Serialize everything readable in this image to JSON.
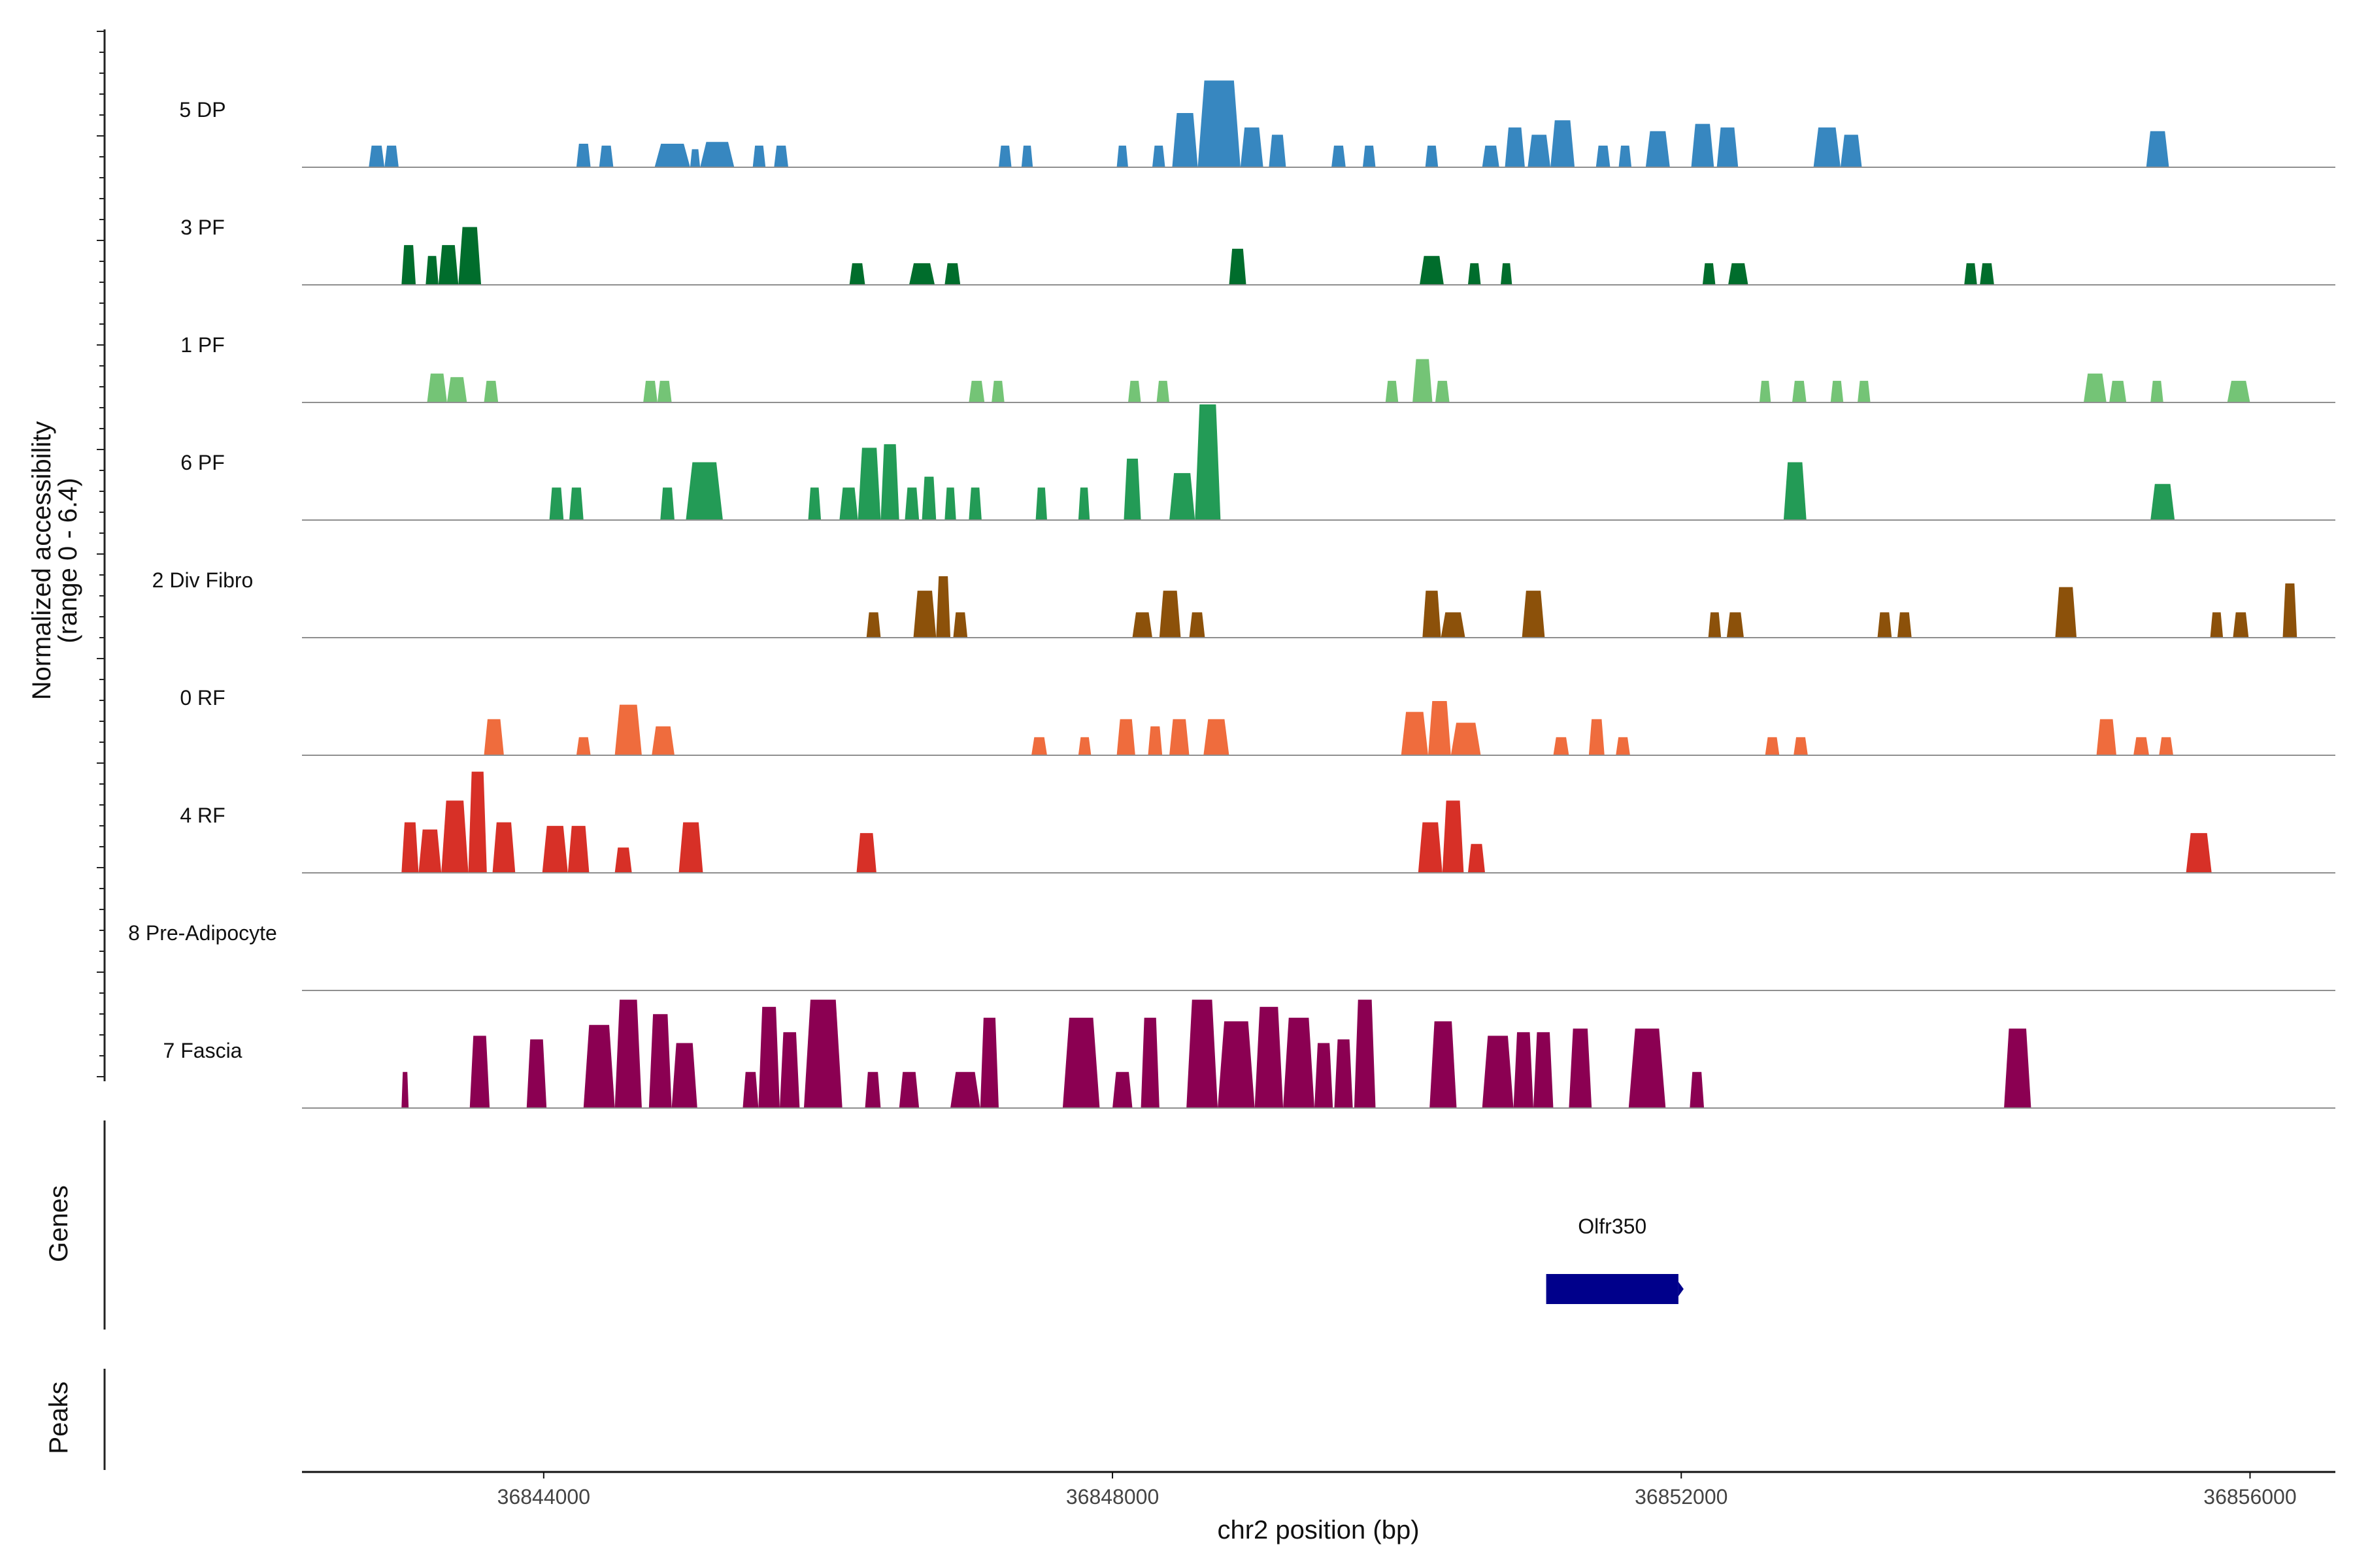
{
  "chart_data": {
    "type": "area",
    "title": "",
    "ylabel": "Normalized accessibility",
    "ylabel_range": "(range 0 - 6.4)",
    "ylim": [
      0,
      6.4
    ],
    "xlabel": "chr2 position (bp)",
    "xlim": [
      36842300,
      36856600
    ],
    "xticks": [
      36844000,
      36848000,
      36852000,
      36856000
    ],
    "xtick_labels": [
      "36844000",
      "36848000",
      "36852000",
      "36856000"
    ],
    "series": [
      {
        "name": "5 DP",
        "color": "#3787c0",
        "peaks": [
          [
            36842770,
            36842880,
            1.2
          ],
          [
            36842880,
            36842980,
            1.2
          ],
          [
            36844230,
            36844330,
            1.3
          ],
          [
            36844390,
            36844490,
            1.2
          ],
          [
            36844780,
            36845030,
            1.3
          ],
          [
            36845030,
            36845100,
            1.0
          ],
          [
            36845100,
            36845340,
            1.4
          ],
          [
            36845470,
            36845560,
            1.2
          ],
          [
            36845620,
            36845720,
            1.2
          ],
          [
            36847200,
            36847290,
            1.2
          ],
          [
            36847360,
            36847440,
            1.2
          ],
          [
            36848030,
            36848110,
            1.2
          ],
          [
            36848280,
            36848370,
            1.2
          ],
          [
            36848420,
            36848600,
            3.0
          ],
          [
            36848600,
            36848900,
            4.8
          ],
          [
            36848900,
            36849060,
            2.2
          ],
          [
            36849100,
            36849220,
            1.8
          ],
          [
            36849540,
            36849640,
            1.2
          ],
          [
            36849760,
            36849850,
            1.2
          ],
          [
            36850200,
            36850290,
            1.2
          ],
          [
            36850600,
            36850720,
            1.2
          ],
          [
            36850760,
            36850900,
            2.2
          ],
          [
            36850920,
            36851080,
            1.8
          ],
          [
            36851080,
            36851250,
            2.6
          ],
          [
            36851400,
            36851500,
            1.2
          ],
          [
            36851560,
            36851650,
            1.2
          ],
          [
            36851750,
            36851920,
            2.0
          ],
          [
            36852070,
            36852230,
            2.4
          ],
          [
            36852250,
            36852400,
            2.2
          ],
          [
            36852930,
            36853120,
            2.2
          ],
          [
            36853120,
            36853270,
            1.8
          ],
          [
            36855270,
            36855430,
            2.0
          ]
        ]
      },
      {
        "name": "3 PF",
        "color": "#006d2c",
        "peaks": [
          [
            36843000,
            36843100,
            2.2
          ],
          [
            36843170,
            36843260,
            1.6
          ],
          [
            36843260,
            36843400,
            2.2
          ],
          [
            36843400,
            36843560,
            3.2
          ],
          [
            36846150,
            36846260,
            1.2
          ],
          [
            36846570,
            36846750,
            1.2
          ],
          [
            36846820,
            36846930,
            1.2
          ],
          [
            36848820,
            36848940,
            2.0
          ],
          [
            36850160,
            36850330,
            1.6
          ],
          [
            36850500,
            36850590,
            1.2
          ],
          [
            36850730,
            36850810,
            1.2
          ],
          [
            36852150,
            36852240,
            1.2
          ],
          [
            36852330,
            36852470,
            1.2
          ],
          [
            36853990,
            36854080,
            1.2
          ],
          [
            36854100,
            36854200,
            1.2
          ]
        ]
      },
      {
        "name": "1 PF",
        "color": "#74c476",
        "peaks": [
          [
            36843180,
            36843320,
            1.6
          ],
          [
            36843320,
            36843460,
            1.4
          ],
          [
            36843580,
            36843680,
            1.2
          ],
          [
            36844700,
            36844800,
            1.2
          ],
          [
            36844800,
            36844900,
            1.2
          ],
          [
            36846990,
            36847100,
            1.2
          ],
          [
            36847150,
            36847240,
            1.2
          ],
          [
            36848110,
            36848200,
            1.2
          ],
          [
            36848310,
            36848400,
            1.2
          ],
          [
            36849920,
            36850010,
            1.2
          ],
          [
            36850110,
            36850250,
            2.4
          ],
          [
            36850270,
            36850370,
            1.2
          ],
          [
            36852550,
            36852630,
            1.2
          ],
          [
            36852780,
            36852880,
            1.2
          ],
          [
            36853050,
            36853140,
            1.2
          ],
          [
            36853240,
            36853330,
            1.2
          ],
          [
            36854830,
            36854990,
            1.6
          ],
          [
            36855010,
            36855130,
            1.2
          ],
          [
            36855300,
            36855390,
            1.2
          ],
          [
            36855840,
            36856000,
            1.2
          ]
        ]
      },
      {
        "name": "6 PF",
        "color": "#239b56",
        "peaks": [
          [
            36844040,
            36844140,
            1.8
          ],
          [
            36844180,
            36844280,
            1.8
          ],
          [
            36844820,
            36844920,
            1.8
          ],
          [
            36845000,
            36845260,
            3.2
          ],
          [
            36845860,
            36845950,
            1.8
          ],
          [
            36846080,
            36846210,
            1.8
          ],
          [
            36846210,
            36846370,
            4.0
          ],
          [
            36846370,
            36846500,
            4.2
          ],
          [
            36846540,
            36846640,
            1.8
          ],
          [
            36846660,
            36846760,
            2.4
          ],
          [
            36846820,
            36846900,
            1.8
          ],
          [
            36846990,
            36847080,
            1.8
          ],
          [
            36847460,
            36847540,
            1.8
          ],
          [
            36847760,
            36847840,
            1.8
          ],
          [
            36848080,
            36848200,
            3.4
          ],
          [
            36848400,
            36848580,
            2.6
          ],
          [
            36848580,
            36848760,
            6.4
          ],
          [
            36852720,
            36852880,
            3.2
          ],
          [
            36855300,
            36855470,
            2.0
          ]
        ]
      },
      {
        "name": "2 Div Fibro",
        "color": "#8c510a",
        "peaks": [
          [
            36846270,
            36846370,
            1.4
          ],
          [
            36846600,
            36846760,
            2.6
          ],
          [
            36846760,
            36846860,
            3.4
          ],
          [
            36846880,
            36846980,
            1.4
          ],
          [
            36848140,
            36848280,
            1.4
          ],
          [
            36848330,
            36848480,
            2.6
          ],
          [
            36848540,
            36848650,
            1.4
          ],
          [
            36850180,
            36850310,
            2.6
          ],
          [
            36850310,
            36850480,
            1.4
          ],
          [
            36850880,
            36851040,
            2.6
          ],
          [
            36852190,
            36852280,
            1.4
          ],
          [
            36852320,
            36852440,
            1.4
          ],
          [
            36853380,
            36853480,
            1.4
          ],
          [
            36853520,
            36853620,
            1.4
          ],
          [
            36854630,
            36854780,
            2.8
          ],
          [
            36855720,
            36855810,
            1.4
          ],
          [
            36855880,
            36855990,
            1.4
          ],
          [
            36856230,
            36856330,
            3.0
          ]
        ]
      },
      {
        "name": "0 RF",
        "color": "#ef6c3d",
        "peaks": [
          [
            36843580,
            36843720,
            2.0
          ],
          [
            36844230,
            36844330,
            1.0
          ],
          [
            36844500,
            36844690,
            2.8
          ],
          [
            36844760,
            36844920,
            1.6
          ],
          [
            36847430,
            36847540,
            1.0
          ],
          [
            36847760,
            36847850,
            1.0
          ],
          [
            36848030,
            36848160,
            2.0
          ],
          [
            36848250,
            36848350,
            1.6
          ],
          [
            36848400,
            36848540,
            2.0
          ],
          [
            36848640,
            36848820,
            2.0
          ],
          [
            36850030,
            36850220,
            2.4
          ],
          [
            36850220,
            36850380,
            3.0
          ],
          [
            36850380,
            36850590,
            1.8
          ],
          [
            36851100,
            36851210,
            1.0
          ],
          [
            36851350,
            36851460,
            2.0
          ],
          [
            36851540,
            36851640,
            1.0
          ],
          [
            36852590,
            36852690,
            1.0
          ],
          [
            36852790,
            36852890,
            1.0
          ],
          [
            36854920,
            36855060,
            2.0
          ],
          [
            36855180,
            36855290,
            1.0
          ],
          [
            36855360,
            36855460,
            1.0
          ]
        ]
      },
      {
        "name": "4 RF",
        "color": "#d73027",
        "peaks": [
          [
            36843000,
            36843120,
            2.8
          ],
          [
            36843120,
            36843280,
            2.4
          ],
          [
            36843280,
            36843470,
            4.0
          ],
          [
            36843470,
            36843600,
            5.6
          ],
          [
            36843640,
            36843800,
            2.8
          ],
          [
            36843990,
            36844170,
            2.6
          ],
          [
            36844170,
            36844320,
            2.6
          ],
          [
            36844500,
            36844620,
            1.4
          ],
          [
            36844950,
            36845120,
            2.8
          ],
          [
            36846200,
            36846340,
            2.2
          ],
          [
            36850150,
            36850320,
            2.8
          ],
          [
            36850320,
            36850470,
            4.0
          ],
          [
            36850500,
            36850620,
            1.6
          ],
          [
            36855550,
            36855730,
            2.2
          ]
        ]
      },
      {
        "name": "8 Pre-Adipocyte",
        "color": "#7f7f7f",
        "peaks": []
      },
      {
        "name": "7 Fascia",
        "color": "#8b0052",
        "peaks": [
          [
            36843000,
            36843050,
            2.0
          ],
          [
            36843480,
            36843620,
            4.0
          ],
          [
            36843880,
            36844020,
            3.8
          ],
          [
            36844280,
            36844500,
            4.6
          ],
          [
            36844500,
            36844690,
            6.0
          ],
          [
            36844740,
            36844900,
            5.2
          ],
          [
            36844900,
            36845080,
            3.6
          ],
          [
            36845400,
            36845510,
            2.0
          ],
          [
            36845510,
            36845660,
            5.6
          ],
          [
            36845660,
            36845800,
            4.2
          ],
          [
            36845830,
            36846100,
            6.0
          ],
          [
            36846260,
            36846370,
            2.0
          ],
          [
            36846500,
            36846640,
            2.0
          ],
          [
            36846860,
            36847070,
            2.0
          ],
          [
            36847070,
            36847200,
            5.0
          ],
          [
            36847650,
            36847910,
            5.0
          ],
          [
            36848000,
            36848140,
            2.0
          ],
          [
            36848200,
            36848330,
            5.0
          ],
          [
            36848520,
            36848740,
            6.0
          ],
          [
            36848740,
            36849000,
            4.8
          ],
          [
            36849000,
            36849200,
            5.6
          ],
          [
            36849200,
            36849420,
            5.0
          ],
          [
            36849420,
            36849550,
            3.6
          ],
          [
            36849560,
            36849690,
            3.8
          ],
          [
            36849700,
            36849850,
            6.0
          ],
          [
            36850230,
            36850420,
            4.8
          ],
          [
            36850600,
            36850820,
            4.0
          ],
          [
            36850820,
            36850960,
            4.2
          ],
          [
            36850960,
            36851100,
            4.2
          ],
          [
            36851210,
            36851370,
            4.4
          ],
          [
            36851630,
            36851890,
            4.4
          ],
          [
            36852060,
            36852160,
            2.0
          ],
          [
            36854270,
            36854460,
            4.4
          ]
        ]
      }
    ],
    "genes": {
      "track_label": "Genes",
      "items": [
        {
          "name": "Olfr350",
          "start": 36851050,
          "end": 36851980,
          "color": "#00008b"
        }
      ]
    },
    "peaks_track": {
      "track_label": "Peaks"
    }
  }
}
